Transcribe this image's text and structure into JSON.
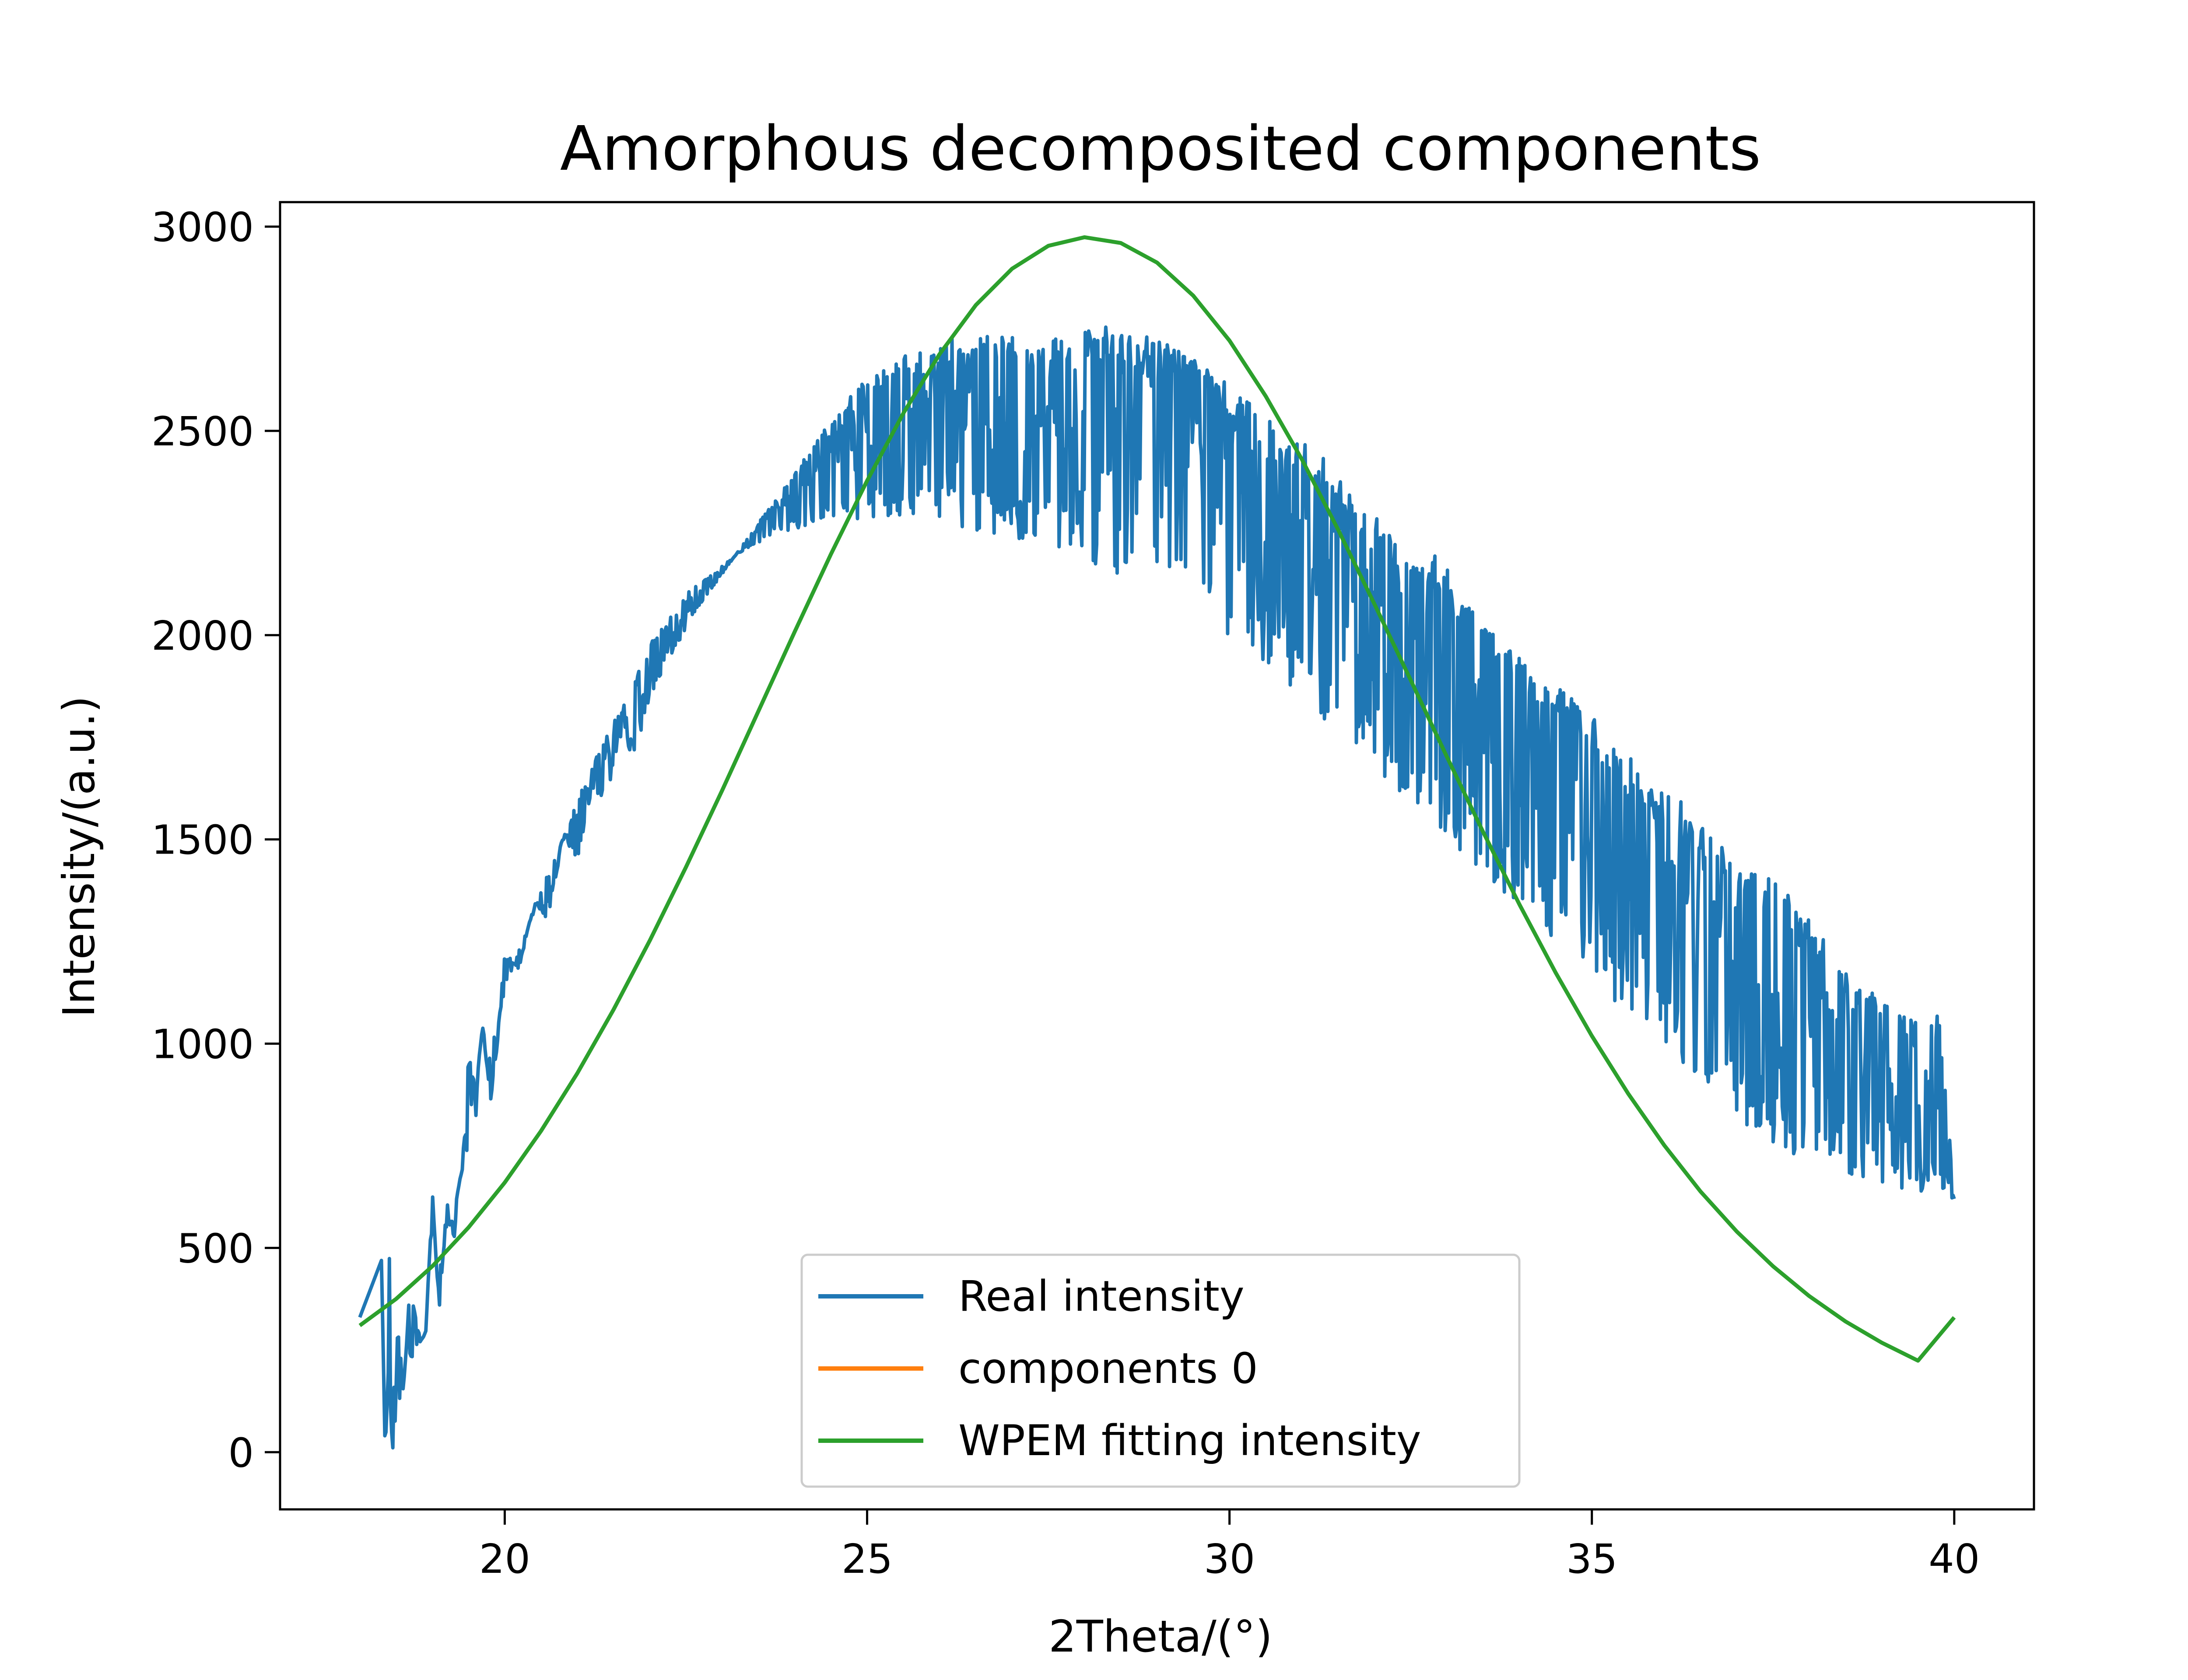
{
  "chart_data": {
    "type": "line",
    "title": "Amorphous decomposited components",
    "xlabel": "2Theta/(°)",
    "ylabel": "Intensity/(a.u.)",
    "xlim": [
      16.9,
      41.1
    ],
    "ylim": [
      -140,
      3060
    ],
    "x_ticks": [
      "20",
      "25",
      "30",
      "35",
      "40"
    ],
    "y_ticks": [
      "0",
      "500",
      "1000",
      "1500",
      "2000",
      "2500",
      "3000"
    ],
    "grid": false,
    "legend_position": "lower center",
    "series": [
      {
        "name": "Real intensity",
        "color": "#1f77b4",
        "x": [
          18.0,
          18.3,
          18.35,
          18.4,
          18.45,
          18.55,
          18.6,
          18.7,
          18.8,
          18.9,
          19.0,
          19.1,
          19.2,
          19.3,
          19.4,
          19.5,
          19.6,
          19.7,
          19.8,
          19.9,
          20.0,
          20.2,
          20.4,
          20.6,
          20.8,
          21.0,
          21.2,
          21.4,
          21.6,
          21.8,
          22.0,
          22.3,
          22.6,
          23.0,
          23.4,
          23.8,
          24.2,
          24.6,
          25.0,
          25.4,
          25.8,
          26.2,
          26.6,
          27.0,
          27.4,
          27.8,
          28.2,
          28.6,
          29.0,
          29.4,
          29.8,
          30.2,
          30.6,
          31.0,
          31.4,
          31.8,
          32.2,
          32.6,
          33.0,
          33.4,
          33.8,
          34.2,
          34.6,
          35.0,
          35.4,
          35.8,
          36.2,
          36.6,
          37.0,
          37.4,
          37.8,
          38.2,
          38.6,
          39.0,
          39.4,
          39.8,
          40.0
        ],
        "y": [
          330,
          470,
          0,
          590,
          60,
          580,
          150,
          430,
          300,
          250,
          650,
          350,
          620,
          520,
          700,
          980,
          900,
          1050,
          850,
          1000,
          1230,
          1180,
          1350,
          1300,
          1500,
          1450,
          1620,
          1600,
          1750,
          1700,
          1850,
          1950,
          2050,
          2150,
          2250,
          2350,
          2450,
          2550,
          2630,
          2680,
          2700,
          2730,
          2740,
          2760,
          2700,
          2770,
          2760,
          2750,
          2720,
          2700,
          2640,
          2580,
          2530,
          2480,
          2420,
          2320,
          2260,
          2220,
          2180,
          2050,
          1980,
          1920,
          1880,
          1800,
          1720,
          1660,
          1600,
          1550,
          1480,
          1420,
          1350,
          1260,
          1180,
          1100,
          1060,
          1080,
          620
        ],
        "y_low": [
          330,
          470,
          0,
          200,
          0,
          60,
          150,
          200,
          250,
          300,
          380,
          450,
          520,
          600,
          680,
          750,
          820,
          900,
          980,
          1050,
          1130,
          1230,
          1320,
          1420,
          1500,
          1600,
          1680,
          1750,
          1830,
          1900,
          1980,
          2050,
          2120,
          2170,
          2220,
          2250,
          2270,
          2280,
          2285,
          2285,
          2280,
          2270,
          2250,
          2240,
          2220,
          2200,
          2170,
          2140,
          2100,
          2060,
          2010,
          1950,
          1900,
          1840,
          1780,
          1710,
          1640,
          1570,
          1500,
          1430,
          1360,
          1290,
          1220,
          1150,
          1080,
          1010,
          950,
          880,
          820,
          760,
          720,
          700,
          680,
          660,
          640,
          630,
          620
        ]
      },
      {
        "name": "components 0",
        "color": "#ff7f0e",
        "x": [],
        "y": []
      },
      {
        "name": "WPEM fitting intensity",
        "color": "#2ca02c",
        "x": [
          18.0,
          18.5,
          19.0,
          19.5,
          20.0,
          20.5,
          21.0,
          21.5,
          22.0,
          22.5,
          23.0,
          23.5,
          24.0,
          24.5,
          25.0,
          25.5,
          26.0,
          26.5,
          27.0,
          27.5,
          28.0,
          28.5,
          29.0,
          29.5,
          30.0,
          30.5,
          31.0,
          31.5,
          32.0,
          32.5,
          33.0,
          33.5,
          34.0,
          34.5,
          35.0,
          35.5,
          36.0,
          36.5,
          37.0,
          37.5,
          38.0,
          38.5,
          39.0,
          39.5,
          40.0
        ],
        "y": [
          310,
          375,
          455,
          550,
          660,
          786,
          927,
          1083,
          1252,
          1432,
          1620,
          1814,
          2008,
          2198,
          2378,
          2543,
          2688,
          2808,
          2897,
          2953,
          2974,
          2960,
          2912,
          2831,
          2721,
          2585,
          2430,
          2258,
          2076,
          1890,
          1702,
          1518,
          1341,
          1174,
          1019,
          878,
          751,
          638,
          540,
          455,
          382,
          320,
          268,
          224,
          330
        ]
      }
    ]
  }
}
